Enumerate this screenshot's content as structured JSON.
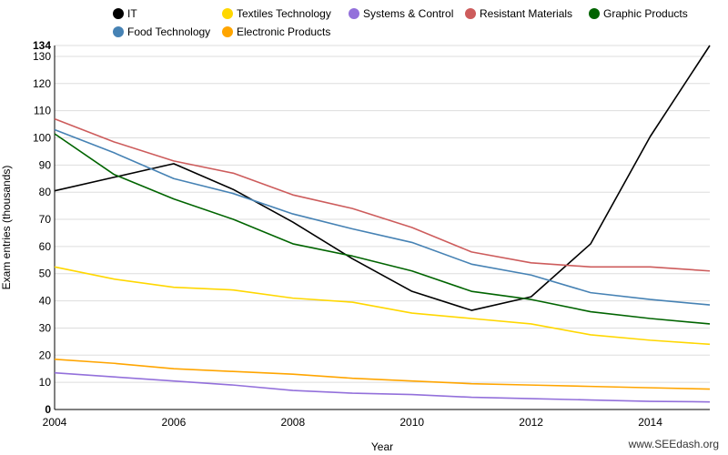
{
  "chart_data": {
    "type": "line",
    "xlabel": "Year",
    "ylabel": "Exam entries (thousands)",
    "x": [
      2004,
      2005,
      2006,
      2007,
      2008,
      2009,
      2010,
      2011,
      2012,
      2013,
      2014,
      2015
    ],
    "xlim": [
      2004,
      2015
    ],
    "ylim": [
      0,
      134
    ],
    "x_ticks": [
      2004,
      2006,
      2008,
      2010,
      2012,
      2014
    ],
    "y_ticks": [
      0,
      10,
      20,
      30,
      40,
      50,
      60,
      70,
      80,
      90,
      100,
      110,
      120,
      130,
      134
    ],
    "y_max_label": "134",
    "grid": "horizontal",
    "legend_position": "top",
    "series": [
      {
        "name": "IT",
        "color": "#000000",
        "values": [
          80.5,
          85.5,
          90.5,
          81.0,
          69.0,
          55.5,
          43.5,
          36.5,
          41.5,
          61.0,
          100.5,
          134
        ]
      },
      {
        "name": "Textiles Technology",
        "color": "#ffd700",
        "values": [
          52.5,
          48.0,
          45.0,
          44.0,
          41.0,
          39.5,
          35.5,
          33.5,
          31.5,
          27.5,
          25.5,
          24.0
        ]
      },
      {
        "name": "Systems & Control",
        "color": "#9370db",
        "values": [
          13.5,
          12.0,
          10.5,
          9.0,
          7.0,
          6.0,
          5.5,
          4.5,
          4.0,
          3.5,
          3.0,
          2.8
        ]
      },
      {
        "name": "Resistant Materials",
        "color": "#cd5c5c",
        "values": [
          107.0,
          98.5,
          91.5,
          87.0,
          79.0,
          74.0,
          67.0,
          58.0,
          54.0,
          52.5,
          52.5,
          51.0
        ]
      },
      {
        "name": "Graphic Products",
        "color": "#006400",
        "values": [
          101.5,
          86.5,
          77.5,
          70.0,
          61.0,
          56.5,
          51.0,
          43.5,
          40.5,
          36.0,
          33.5,
          31.5
        ]
      },
      {
        "name": "Food Technology",
        "color": "#4682b4",
        "values": [
          103.0,
          94.5,
          85.0,
          79.5,
          72.0,
          66.5,
          61.5,
          53.5,
          49.5,
          43.0,
          40.5,
          38.5
        ]
      },
      {
        "name": "Electronic Products",
        "color": "#ffa500",
        "values": [
          18.5,
          17.0,
          15.0,
          14.0,
          13.0,
          11.5,
          10.5,
          9.5,
          9.0,
          8.5,
          8.0,
          7.5
        ]
      }
    ]
  },
  "credit": "www.SEEdash.org"
}
